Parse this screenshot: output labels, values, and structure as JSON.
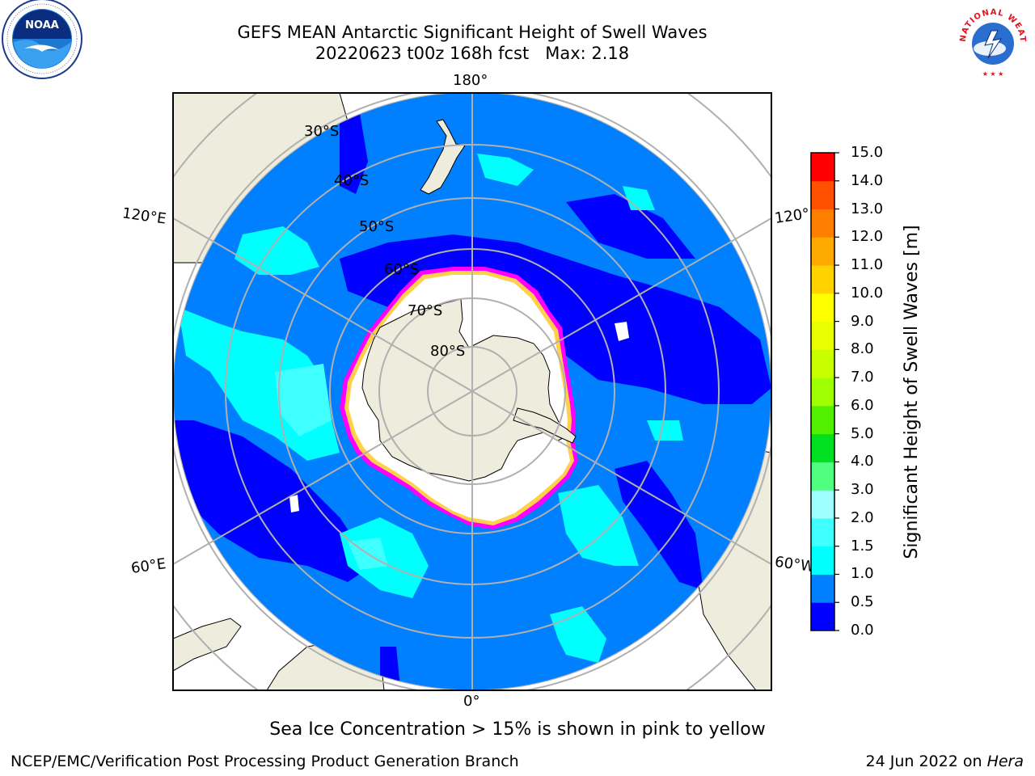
{
  "title": {
    "line1": "GEFS MEAN Antarctic Significant Height of Swell Waves",
    "line2": "20220623 t00z 168h fcst   Max: 2.18"
  },
  "logos": {
    "left": {
      "icon": "noaa-logo",
      "text": "NOAA"
    },
    "right": {
      "icon": "national-weather-service-logo",
      "text": "NATIONAL WEATHER SERVICE"
    }
  },
  "map": {
    "projection": "south-polar-stereographic",
    "longitude_labels": {
      "top": "180°",
      "bottom": "0°",
      "upper_left": "120°E",
      "lower_left": "60°E",
      "upper_right": "120°",
      "lower_right": "60°W"
    },
    "latitude_labels": [
      "30°S",
      "40°S",
      "50°S",
      "60°S",
      "70°S",
      "80°S"
    ],
    "sea_ice_colors": [
      "#ff00ff",
      "#ffaa33",
      "#ffe040"
    ]
  },
  "colorbar": {
    "label": "Significant Height of Swell Waves [m]",
    "ticks": [
      "0.0",
      "0.5",
      "1.0",
      "1.5",
      "2.0",
      "3.0",
      "4.0",
      "5.0",
      "6.0",
      "7.0",
      "8.0",
      "9.0",
      "10.0",
      "11.0",
      "12.0",
      "13.0",
      "14.0",
      "15.0"
    ],
    "colors": [
      "#0000ff",
      "#0080ff",
      "#00ffff",
      "#40ffff",
      "#a0ffff",
      "#50ff80",
      "#00e020",
      "#50f000",
      "#a0ff00",
      "#c8ff00",
      "#e8ff00",
      "#ffff00",
      "#ffd200",
      "#ffaa00",
      "#ff8000",
      "#ff5000",
      "#ff0000"
    ]
  },
  "note": "Sea Ice Concentration > 15% is shown in pink to yellow",
  "footer": {
    "left": "NCEP/EMC/Verification Post Processing Product Generation Branch",
    "date": "24 Jun 2022 on",
    "host": "Hera"
  }
}
